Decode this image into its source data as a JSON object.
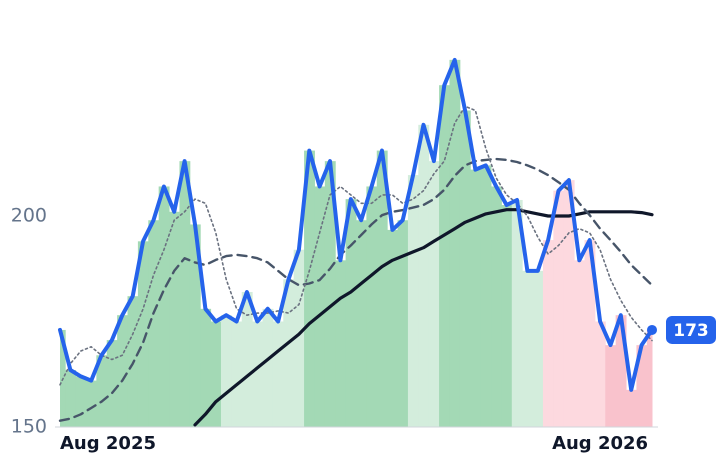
{
  "chart_data": {
    "type": "line",
    "categories": [
      "Aug 2025",
      null,
      null,
      null,
      null,
      null,
      null,
      null,
      null,
      null,
      null,
      null,
      null,
      null,
      null,
      null,
      null,
      null,
      null,
      null,
      null,
      null,
      null,
      null,
      null,
      null,
      null,
      null,
      null,
      null,
      null,
      null,
      null,
      null,
      null,
      null,
      null,
      null,
      null,
      null,
      null,
      null,
      null,
      null,
      null,
      null,
      null,
      null,
      null,
      null,
      null,
      null,
      "Aug 2026",
      null,
      null,
      null,
      null,
      null
    ],
    "ylim": [
      150,
      250
    ],
    "yticks": [
      150,
      200
    ],
    "grid": false,
    "area_colors": [
      "#a3d9b5",
      "#a3d9b5",
      "#a3d9b5",
      "#a3d9b5",
      "#a3d9b5",
      "#a3d9b5",
      "#a3d9b5",
      "#a3d9b5",
      "#a3d9b5",
      "#a3d9b5",
      "#a3d9b5",
      "#a3d9b5",
      "#a3d9b5",
      "#a3d9b5",
      "#a3d9b5",
      "#a3d9b5",
      "#d3eddc",
      "#d3eddc",
      "#d3eddc",
      "#d3eddc",
      "#d3eddc",
      "#d3eddc",
      "#d3eddc",
      "#d3eddc",
      "#a3d9b5",
      "#a3d9b5",
      "#a3d9b5",
      "#a3d9b5",
      "#a3d9b5",
      "#a3d9b5",
      "#a3d9b5",
      "#a3d9b5",
      "#a3d9b5",
      "#a3d9b5",
      "#d3eddc",
      "#d3eddc",
      "#d3eddc",
      "#a3d9b5",
      "#a3d9b5",
      "#a3d9b5",
      "#a3d9b5",
      "#a3d9b5",
      "#a3d9b5",
      "#a3d9b5",
      "#d3eddc",
      "#d3eddc",
      "#d3eddc",
      "#fdd9df",
      "#fdd9df",
      "#fdd9df",
      "#fdd9df",
      "#fdd9df",
      "#fdd9df",
      "#f9c2cc",
      "#f9c2cc",
      "#f9c2cc",
      "#f9c2cc",
      "#f9c2cc"
    ],
    "series": [
      {
        "color": "#2563eb",
        "style": "solid",
        "width": 4,
        "area": true,
        "values": [
          173,
          163.5,
          162,
          161,
          167,
          170.6,
          176.5,
          181,
          194,
          199,
          207,
          201,
          213,
          198,
          178,
          175,
          176.5,
          175,
          182,
          175,
          178,
          175,
          185,
          192,
          215.5,
          207,
          213,
          189.5,
          204,
          199,
          207,
          215.5,
          196.7,
          199,
          209.7,
          221.6,
          213,
          231,
          237,
          225,
          211,
          212,
          207,
          202.6,
          203.8,
          187,
          187,
          194.3,
          206,
          208.5,
          189.5,
          194.3,
          175,
          169.4,
          176.5,
          158.8,
          169.4,
          173
        ]
      },
      {
        "color": "#6b7280",
        "style": "dotted",
        "width": 1.6,
        "values": [
          160,
          165,
          168,
          169,
          167,
          166,
          167,
          172,
          178,
          186,
          192,
          199,
          201,
          204,
          203,
          196,
          185,
          178,
          176.5,
          177,
          177,
          177.5,
          177,
          179,
          187,
          196,
          205,
          207,
          205,
          203,
          203,
          205,
          205,
          203,
          204,
          206,
          210,
          213,
          222,
          226,
          225,
          216,
          209,
          205,
          203,
          200,
          195,
          191,
          193,
          196,
          197,
          196,
          192,
          185,
          180,
          176,
          173,
          170.5
        ]
      },
      {
        "color": "#475569",
        "style": "dashed",
        "width": 2.4,
        "values": [
          151.5,
          152,
          153,
          154.5,
          156,
          158,
          161,
          165,
          170,
          177,
          182.5,
          187,
          190,
          189,
          188.4,
          189.6,
          190.5,
          190.8,
          190.5,
          190,
          189,
          187,
          185,
          183.6,
          184,
          184.8,
          187.5,
          190.8,
          193,
          195.5,
          198,
          200.2,
          201,
          201.4,
          202,
          202.6,
          204,
          206.2,
          209.5,
          212,
          213,
          213.3,
          213.5,
          213.3,
          212.8,
          212,
          211,
          209.7,
          208,
          206.2,
          203,
          200.2,
          197,
          194.3,
          191.5,
          188.4,
          186,
          183.6
        ]
      },
      {
        "color": "#0f172a",
        "style": "solid",
        "width": 3.2,
        "values": [
          null,
          null,
          null,
          null,
          null,
          null,
          null,
          null,
          null,
          null,
          null,
          null,
          null,
          150.5,
          153,
          156,
          158,
          160,
          162,
          164,
          166,
          168,
          170,
          172,
          174.5,
          176.5,
          178.5,
          180.5,
          182,
          184,
          186,
          188,
          189.5,
          190.5,
          191.5,
          192.5,
          194,
          195.5,
          197,
          198.5,
          199.5,
          200.5,
          201,
          201.5,
          201.5,
          201,
          200.5,
          200,
          200,
          200,
          200.5,
          201,
          201,
          201,
          201,
          201,
          200.8,
          200.3
        ]
      }
    ]
  }
}
